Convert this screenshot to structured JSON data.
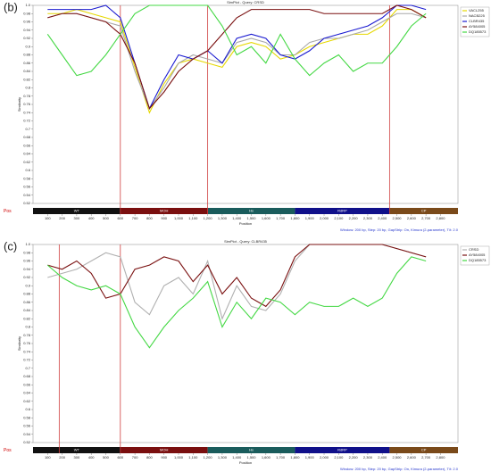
{
  "chart_data": [
    {
      "type": "line",
      "panel_label": "(b)",
      "title": "SimPlot - Query: CRSD",
      "xlabel": "Position",
      "ylabel": "Similarity",
      "footer": "Window: 200 bp, Step: 20 bp, GapStrip: On, Kimura (2-parameter), T/t: 2.0",
      "genome_label": "Pos",
      "x": [
        100,
        200,
        300,
        400,
        500,
        600,
        700,
        800,
        900,
        1000,
        1100,
        1200,
        1300,
        1400,
        1500,
        1600,
        1700,
        1800,
        1900,
        2000,
        2100,
        2200,
        2300,
        2400,
        2500,
        2600,
        2700
      ],
      "series": [
        {
          "name": "VACL255",
          "color": "#e6d800",
          "values": [
            0.98,
            0.98,
            0.99,
            0.98,
            0.97,
            0.96,
            0.85,
            0.74,
            0.81,
            0.86,
            0.87,
            0.86,
            0.85,
            0.9,
            0.91,
            0.9,
            0.87,
            0.88,
            0.9,
            0.91,
            0.92,
            0.93,
            0.93,
            0.95,
            0.99,
            0.99,
            0.97
          ]
        },
        {
          "name": "NACB225",
          "color": "#a8a8a8",
          "values": [
            0.97,
            0.98,
            0.98,
            0.97,
            0.96,
            0.95,
            0.84,
            0.75,
            0.8,
            0.86,
            0.88,
            0.87,
            0.86,
            0.91,
            0.92,
            0.91,
            0.88,
            0.88,
            0.91,
            0.92,
            0.92,
            0.93,
            0.94,
            0.96,
            0.98,
            0.98,
            0.97
          ]
        },
        {
          "name": "CLBR435",
          "color": "#1a1ad0",
          "values": [
            0.99,
            0.99,
            0.99,
            0.99,
            1.0,
            0.97,
            0.86,
            0.75,
            0.82,
            0.88,
            0.87,
            0.89,
            0.86,
            0.92,
            0.93,
            0.92,
            0.88,
            0.87,
            0.89,
            0.92,
            0.93,
            0.94,
            0.95,
            0.97,
            1.0,
            1.0,
            0.99
          ]
        },
        {
          "name": "AY584005",
          "color": "#7a1010",
          "values": [
            0.97,
            0.98,
            0.98,
            0.97,
            0.96,
            0.93,
            0.86,
            0.75,
            0.79,
            0.84,
            0.87,
            0.89,
            0.93,
            0.97,
            0.99,
            0.99,
            0.99,
            0.99,
            0.99,
            0.98,
            0.98,
            0.98,
            0.98,
            0.98,
            1.0,
            0.99,
            0.97
          ]
        },
        {
          "name": "DQ185573",
          "color": "#44d844",
          "values": [
            0.93,
            0.88,
            0.83,
            0.84,
            0.88,
            0.93,
            0.98,
            1.0,
            1.0,
            1.0,
            1.0,
            1.0,
            0.95,
            0.88,
            0.9,
            0.86,
            0.93,
            0.87,
            0.83,
            0.86,
            0.88,
            0.84,
            0.86,
            0.86,
            0.9,
            0.95,
            0.98
          ]
        }
      ],
      "breakpoints": [
        600,
        1200,
        2450
      ],
      "regions": [
        {
          "name": "WT",
          "start": 0,
          "end": 600,
          "color": "#111111"
        },
        {
          "name": "MOH",
          "start": 600,
          "end": 1200,
          "color": "#7a0f0f"
        },
        {
          "name": "Hx",
          "start": 1200,
          "end": 1800,
          "color": "#1a5c5c"
        },
        {
          "name": "RdRP",
          "start": 1800,
          "end": 2450,
          "color": "#10108a"
        },
        {
          "name": "CP",
          "start": 2450,
          "end": 2920,
          "color": "#7a4a1a"
        }
      ],
      "xlim": [
        0,
        2920
      ],
      "ylim": [
        0.52,
        1.0
      ],
      "xticks": [
        100,
        200,
        300,
        400,
        500,
        600,
        700,
        800,
        900,
        {
          "value": 1000,
          "label": "1,000"
        },
        {
          "value": 1100,
          "label": "1,100"
        },
        {
          "value": 1200,
          "label": "1,200"
        },
        {
          "value": 1300,
          "label": "1,300"
        },
        {
          "value": 1400,
          "label": "1,400"
        },
        {
          "value": 1500,
          "label": "1,500"
        },
        {
          "value": 1600,
          "label": "1,600"
        },
        {
          "value": 1700,
          "label": "1,700"
        },
        {
          "value": 1800,
          "label": "1,800"
        },
        {
          "value": 1900,
          "label": "1,900"
        },
        {
          "value": 2000,
          "label": "2,000"
        },
        {
          "value": 2100,
          "label": "2,100"
        },
        {
          "value": 2200,
          "label": "2,200"
        },
        {
          "value": 2300,
          "label": "2,300"
        },
        {
          "value": 2400,
          "label": "2,400"
        },
        {
          "value": 2500,
          "label": "2,500"
        },
        {
          "value": 2600,
          "label": "2,600"
        },
        {
          "value": 2700,
          "label": "2,700"
        },
        {
          "value": 2800,
          "label": "2,800"
        }
      ],
      "yticks": [
        0.52,
        0.54,
        0.56,
        0.58,
        0.6,
        0.62,
        0.64,
        0.66,
        0.68,
        0.7,
        0.72,
        0.74,
        0.76,
        0.78,
        0.8,
        0.82,
        0.84,
        0.86,
        0.88,
        0.9,
        0.92,
        0.94,
        0.96,
        0.98,
        {
          "value": 1,
          "label": "1.0"
        }
      ],
      "grid": false
    },
    {
      "type": "line",
      "panel_label": "(c)",
      "title": "SimPlot - Query: CLBR435",
      "xlabel": "Position",
      "ylabel": "Similarity",
      "footer": "Window: 200 bp, Step: 20 bp, GapStrip: On, Kimura (2-parameter), T/t: 2.0",
      "genome_label": "Pos",
      "x": [
        100,
        200,
        300,
        400,
        500,
        600,
        700,
        800,
        900,
        1000,
        1100,
        1200,
        1300,
        1400,
        1500,
        1600,
        1700,
        1800,
        1900,
        2000,
        2100,
        2200,
        2300,
        2400,
        2500,
        2600,
        2700
      ],
      "series": [
        {
          "name": "CRSD",
          "color": "#b0b0b0",
          "values": [
            0.92,
            0.93,
            0.94,
            0.96,
            0.98,
            0.97,
            0.86,
            0.83,
            0.9,
            0.92,
            0.88,
            0.96,
            0.82,
            0.9,
            0.85,
            0.84,
            0.88,
            0.96,
            1.0,
            1.0,
            1.0,
            1.0,
            1.0,
            1.0,
            0.99,
            0.98,
            0.97
          ]
        },
        {
          "name": "AY584005",
          "color": "#7a1010",
          "values": [
            0.95,
            0.94,
            0.96,
            0.93,
            0.87,
            0.88,
            0.94,
            0.95,
            0.97,
            0.96,
            0.91,
            0.95,
            0.88,
            0.92,
            0.87,
            0.85,
            0.89,
            0.97,
            1.0,
            1.0,
            1.0,
            1.0,
            1.0,
            1.0,
            0.99,
            0.98,
            0.97
          ]
        },
        {
          "name": "DQ185573",
          "color": "#44d844",
          "values": [
            0.95,
            0.92,
            0.9,
            0.89,
            0.9,
            0.88,
            0.8,
            0.75,
            0.8,
            0.84,
            0.87,
            0.91,
            0.8,
            0.86,
            0.82,
            0.87,
            0.86,
            0.83,
            0.86,
            0.85,
            0.85,
            0.87,
            0.85,
            0.87,
            0.93,
            0.97,
            0.96
          ]
        }
      ],
      "breakpoints": [
        180,
        600
      ],
      "regions": [
        {
          "name": "WT",
          "start": 0,
          "end": 600,
          "color": "#111111"
        },
        {
          "name": "MOH",
          "start": 600,
          "end": 1200,
          "color": "#7a0f0f"
        },
        {
          "name": "Hx",
          "start": 1200,
          "end": 1800,
          "color": "#1a5c5c"
        },
        {
          "name": "RdRP",
          "start": 1800,
          "end": 2450,
          "color": "#10108a"
        },
        {
          "name": "CP",
          "start": 2450,
          "end": 2920,
          "color": "#7a4a1a"
        }
      ],
      "xlim": [
        0,
        2920
      ],
      "ylim": [
        0.52,
        1.0
      ],
      "xticks": [
        100,
        200,
        300,
        400,
        500,
        600,
        700,
        800,
        900,
        {
          "value": 1000,
          "label": "1,000"
        },
        {
          "value": 1100,
          "label": "1,100"
        },
        {
          "value": 1200,
          "label": "1,200"
        },
        {
          "value": 1300,
          "label": "1,300"
        },
        {
          "value": 1400,
          "label": "1,400"
        },
        {
          "value": 1500,
          "label": "1,500"
        },
        {
          "value": 1600,
          "label": "1,600"
        },
        {
          "value": 1700,
          "label": "1,700"
        },
        {
          "value": 1800,
          "label": "1,800"
        },
        {
          "value": 1900,
          "label": "1,900"
        },
        {
          "value": 2000,
          "label": "2,000"
        },
        {
          "value": 2100,
          "label": "2,100"
        },
        {
          "value": 2200,
          "label": "2,200"
        },
        {
          "value": 2300,
          "label": "2,300"
        },
        {
          "value": 2400,
          "label": "2,400"
        },
        {
          "value": 2500,
          "label": "2,500"
        },
        {
          "value": 2600,
          "label": "2,600"
        },
        {
          "value": 2700,
          "label": "2,700"
        },
        {
          "value": 2800,
          "label": "2,800"
        }
      ],
      "yticks": [
        0.52,
        0.54,
        0.56,
        0.58,
        0.6,
        0.62,
        0.64,
        0.66,
        0.68,
        0.7,
        0.72,
        0.74,
        0.76,
        0.78,
        0.8,
        0.82,
        0.84,
        0.86,
        0.88,
        0.9,
        0.92,
        0.94,
        0.96,
        0.98,
        {
          "value": 1,
          "label": "1.0"
        }
      ],
      "grid": false
    }
  ]
}
